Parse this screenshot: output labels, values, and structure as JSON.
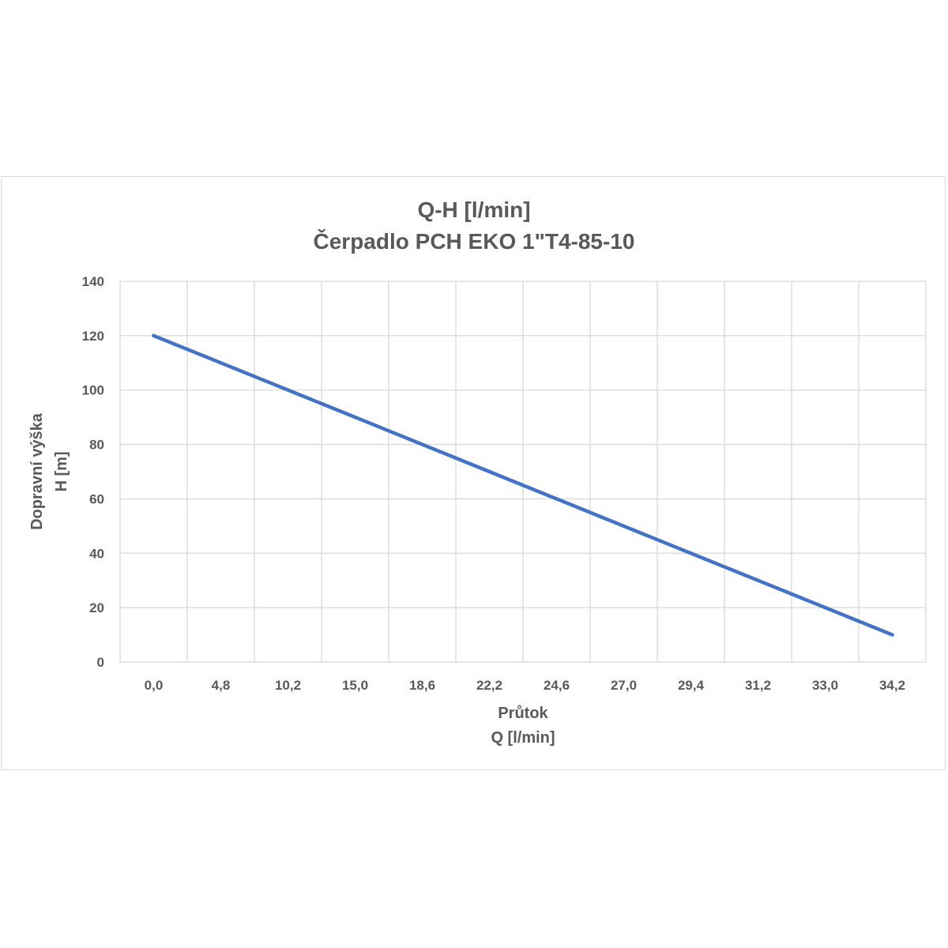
{
  "chart_data": {
    "type": "line",
    "title": "Q-H [l/min]",
    "subtitle": "Čerpadlo PCH EKO 1\"T4-85-10",
    "xlabel": [
      "Průtok",
      "Q [l/min]"
    ],
    "ylabel": [
      "Dopravní výška",
      "H [m]"
    ],
    "categories": [
      "0,0",
      "4,8",
      "10,2",
      "15,0",
      "18,6",
      "22,2",
      "24,6",
      "27,0",
      "29,4",
      "31,2",
      "33,0",
      "34,2"
    ],
    "values": [
      120,
      110,
      100,
      90,
      80,
      70,
      60,
      50,
      40,
      30,
      20,
      10
    ],
    "yticks": [
      "0",
      "20",
      "40",
      "60",
      "80",
      "100",
      "120",
      "140"
    ],
    "ylim": [
      0,
      140
    ],
    "grid": true,
    "line_color": "#4472c4",
    "grid_color": "#d9d9d9"
  }
}
